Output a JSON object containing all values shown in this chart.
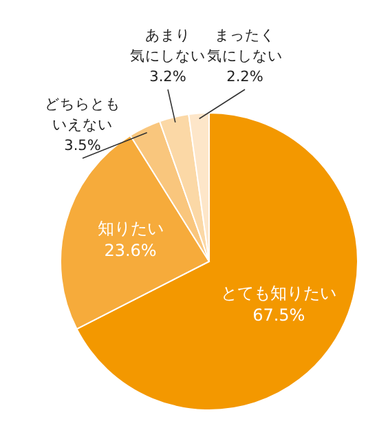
{
  "chart_data": {
    "type": "pie",
    "categories": [
      "とても知りたい",
      "知りたい",
      "どちらともいえない",
      "あまり気にしない",
      "まったく気にしない"
    ],
    "values": [
      67.5,
      23.6,
      3.5,
      3.2,
      2.2
    ],
    "value_labels": [
      "67.5%",
      "23.6%",
      "3.5%",
      "3.2%",
      "2.2%"
    ],
    "colors": [
      "#f39800",
      "#f6ab3b",
      "#f9c67d",
      "#fbd8a6",
      "#fde6c9"
    ]
  }
}
